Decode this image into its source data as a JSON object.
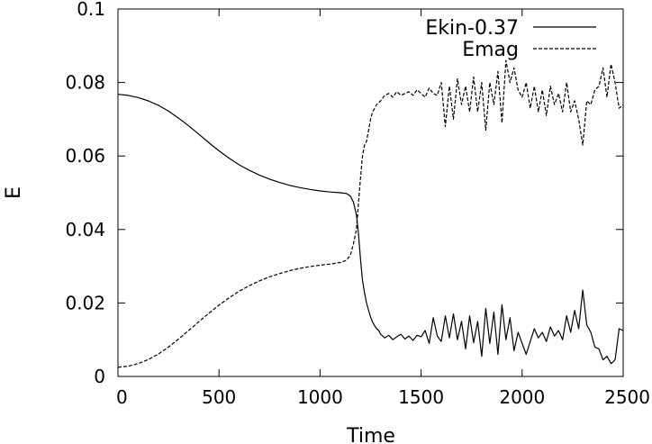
{
  "chart_data": {
    "type": "line",
    "title": "",
    "xlabel": "Time",
    "ylabel": "E",
    "xlim": [
      0,
      2500
    ],
    "ylim": [
      0,
      0.1
    ],
    "x_ticks": [
      "0",
      "500",
      "1000",
      "1500",
      "2000",
      "2500"
    ],
    "y_ticks": [
      "0",
      "0.02",
      "0.04",
      "0.06",
      "0.08",
      "0.1"
    ],
    "grid": false,
    "legend_position": "top-right",
    "series": [
      {
        "name": "Ekin-0.37",
        "style": "solid",
        "color": "#000000",
        "x": [
          0,
          50,
          100,
          150,
          200,
          250,
          300,
          350,
          400,
          450,
          500,
          550,
          600,
          650,
          700,
          750,
          800,
          850,
          900,
          950,
          1000,
          1050,
          1100,
          1130,
          1150,
          1165,
          1180,
          1190,
          1200,
          1210,
          1220,
          1230,
          1240,
          1250,
          1260,
          1270,
          1280,
          1290,
          1300,
          1320,
          1340,
          1360,
          1380,
          1400,
          1420,
          1440,
          1460,
          1480,
          1500,
          1520,
          1540,
          1560,
          1580,
          1600,
          1620,
          1640,
          1660,
          1680,
          1700,
          1720,
          1740,
          1760,
          1780,
          1800,
          1820,
          1840,
          1860,
          1880,
          1900,
          1920,
          1940,
          1960,
          1980,
          2000,
          2020,
          2040,
          2060,
          2080,
          2100,
          2120,
          2140,
          2160,
          2180,
          2200,
          2220,
          2240,
          2260,
          2280,
          2300,
          2320,
          2340,
          2360,
          2380,
          2400,
          2420,
          2440,
          2460,
          2480,
          2500
        ],
        "y": [
          0.0768,
          0.0765,
          0.0759,
          0.075,
          0.0738,
          0.0722,
          0.0703,
          0.0682,
          0.0659,
          0.0636,
          0.0614,
          0.0594,
          0.0576,
          0.0561,
          0.0548,
          0.0537,
          0.0528,
          0.052,
          0.0514,
          0.0509,
          0.0505,
          0.0502,
          0.05,
          0.0498,
          0.0491,
          0.0475,
          0.044,
          0.039,
          0.032,
          0.0262,
          0.0228,
          0.02,
          0.018,
          0.0162,
          0.0148,
          0.0138,
          0.013,
          0.0125,
          0.0115,
          0.0105,
          0.0112,
          0.01,
          0.0108,
          0.0115,
          0.0102,
          0.011,
          0.0098,
          0.0112,
          0.0108,
          0.0125,
          0.009,
          0.016,
          0.011,
          0.0095,
          0.0165,
          0.0105,
          0.017,
          0.01,
          0.015,
          0.0075,
          0.0165,
          0.0092,
          0.015,
          0.0055,
          0.0185,
          0.009,
          0.0175,
          0.006,
          0.0195,
          0.01,
          0.016,
          0.007,
          0.012,
          0.009,
          0.006,
          0.0095,
          0.013,
          0.0105,
          0.012,
          0.0095,
          0.0135,
          0.011,
          0.0125,
          0.01,
          0.0165,
          0.012,
          0.018,
          0.013,
          0.0235,
          0.014,
          0.012,
          0.008,
          0.0075,
          0.0045,
          0.0055,
          0.0035,
          0.0045,
          0.013,
          0.0125
        ]
      },
      {
        "name": "Emag",
        "style": "dashed",
        "color": "#000000",
        "x": [
          0,
          50,
          100,
          150,
          200,
          250,
          300,
          350,
          400,
          450,
          500,
          550,
          600,
          650,
          700,
          750,
          800,
          850,
          900,
          950,
          1000,
          1050,
          1100,
          1130,
          1150,
          1165,
          1180,
          1190,
          1200,
          1210,
          1220,
          1230,
          1240,
          1250,
          1260,
          1270,
          1280,
          1290,
          1300,
          1320,
          1340,
          1360,
          1380,
          1400,
          1420,
          1440,
          1460,
          1480,
          1500,
          1520,
          1540,
          1560,
          1580,
          1600,
          1620,
          1640,
          1660,
          1680,
          1700,
          1720,
          1740,
          1760,
          1780,
          1800,
          1820,
          1840,
          1860,
          1880,
          1900,
          1920,
          1940,
          1960,
          1980,
          2000,
          2020,
          2040,
          2060,
          2080,
          2100,
          2120,
          2140,
          2160,
          2180,
          2200,
          2220,
          2240,
          2260,
          2280,
          2300,
          2320,
          2340,
          2360,
          2380,
          2400,
          2420,
          2440,
          2460,
          2480,
          2500
        ],
        "y": [
          0.0025,
          0.0028,
          0.0035,
          0.0046,
          0.0061,
          0.008,
          0.0102,
          0.0125,
          0.0149,
          0.0172,
          0.0194,
          0.0214,
          0.0232,
          0.0247,
          0.026,
          0.0271,
          0.028,
          0.0288,
          0.0294,
          0.0299,
          0.0303,
          0.0306,
          0.031,
          0.0316,
          0.033,
          0.036,
          0.04,
          0.047,
          0.054,
          0.06,
          0.063,
          0.064,
          0.067,
          0.07,
          0.072,
          0.073,
          0.074,
          0.0745,
          0.075,
          0.0765,
          0.077,
          0.076,
          0.0775,
          0.0765,
          0.077,
          0.0775,
          0.0765,
          0.078,
          0.077,
          0.076,
          0.0785,
          0.077,
          0.0765,
          0.08,
          0.068,
          0.079,
          0.07,
          0.081,
          0.074,
          0.079,
          0.072,
          0.0815,
          0.072,
          0.08,
          0.067,
          0.08,
          0.074,
          0.083,
          0.069,
          0.086,
          0.08,
          0.084,
          0.078,
          0.076,
          0.08,
          0.073,
          0.079,
          0.072,
          0.078,
          0.071,
          0.079,
          0.074,
          0.077,
          0.072,
          0.08,
          0.072,
          0.075,
          0.07,
          0.063,
          0.075,
          0.074,
          0.078,
          0.079,
          0.084,
          0.076,
          0.085,
          0.08,
          0.073,
          0.074
        ]
      }
    ]
  }
}
